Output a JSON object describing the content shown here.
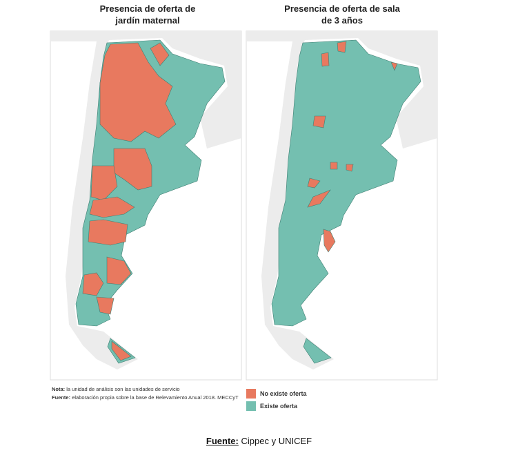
{
  "maps": [
    {
      "title_lines": [
        "Presencia de oferta de",
        "jardín maternal"
      ]
    },
    {
      "title_lines": [
        "Presencia de oferta  de sala",
        "de 3 años"
      ]
    }
  ],
  "notes": [
    {
      "label": "Nota:",
      "text": "la unidad de análisis son las unidades de servicio"
    },
    {
      "label": "Fuente:",
      "text": "elaboración propia sobre la base de Relevamiento Anual 2018. MECCyT"
    }
  ],
  "legend": [
    {
      "label": "No existe oferta",
      "color": "#e8795f"
    },
    {
      "label": "Existe oferta",
      "color": "#74bfb0"
    }
  ],
  "footer": {
    "label": "Fuente:",
    "text": "Cippec y UNICEF"
  }
}
